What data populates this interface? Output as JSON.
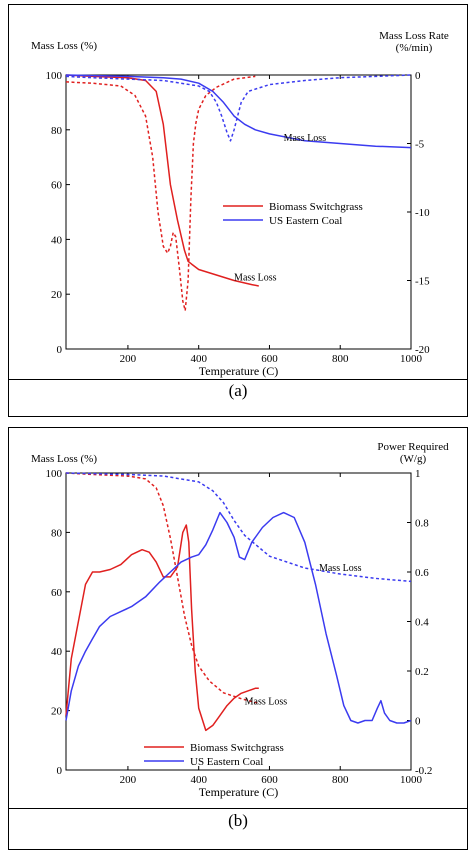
{
  "chart_data": [
    {
      "type": "line",
      "panel_label": "(a)",
      "left_axis_title": "Mass Loss (%)",
      "right_axis_title_line1": "Mass Loss Rate",
      "right_axis_title_line2": "(%/min)",
      "xlabel": "Temperature (C)",
      "xlim": [
        25,
        1000
      ],
      "ylim_left": [
        0,
        100
      ],
      "ylim_right": [
        -20,
        0
      ],
      "x_ticks": [
        200,
        400,
        600,
        800,
        1000
      ],
      "y_left_ticks": [
        0,
        20,
        40,
        60,
        80,
        100
      ],
      "y_right_ticks": [
        0,
        -5,
        -10,
        -15,
        -20
      ],
      "legend": [
        {
          "label": "Biomass Switchgrass",
          "color": "#e0201f"
        },
        {
          "label": "US Eastern Coal",
          "color": "#3b3bf0"
        }
      ],
      "legend_position": "center-right",
      "annotations": [
        {
          "text": "Mass Loss",
          "x": 700,
          "y": 76
        },
        {
          "text": "Mass Loss",
          "x": 560,
          "y": 25
        }
      ],
      "series": [
        {
          "name": "Biomass Switchgrass",
          "axis": "left",
          "style": "solid",
          "color": "#e0201f",
          "x": [
            25,
            100,
            200,
            250,
            280,
            300,
            320,
            340,
            360,
            370,
            380,
            400,
            450,
            500,
            550,
            570
          ],
          "y": [
            100,
            99.5,
            99,
            98,
            94,
            82,
            60,
            47,
            36,
            32,
            31,
            29,
            27,
            25,
            23.5,
            23
          ]
        },
        {
          "axis": "right",
          "style": "dashed",
          "color": "#e0201f",
          "x": [
            25,
            100,
            180,
            220,
            250,
            270,
            285,
            300,
            312,
            320,
            328,
            335,
            345,
            355,
            362,
            370,
            378,
            385,
            392,
            400,
            420,
            450,
            500,
            560
          ],
          "y": [
            -0.5,
            -0.6,
            -0.8,
            -1.5,
            -3,
            -6,
            -10,
            -12.5,
            -13,
            -12.5,
            -11.5,
            -11.8,
            -14,
            -16.5,
            -17.2,
            -15,
            -9,
            -5,
            -3.5,
            -2.5,
            -1.5,
            -0.9,
            -0.3,
            -0.1
          ]
        },
        {
          "name": "US Eastern Coal",
          "axis": "left",
          "style": "solid",
          "color": "#3b3bf0",
          "x": [
            25,
            200,
            300,
            350,
            400,
            440,
            470,
            500,
            530,
            560,
            600,
            700,
            800,
            900,
            1000
          ],
          "y": [
            100,
            99.5,
            99,
            98.5,
            97,
            94,
            90,
            85,
            82,
            80,
            78.5,
            76,
            75,
            74,
            73.5
          ]
        },
        {
          "axis": "right",
          "style": "dashed",
          "color": "#3b3bf0",
          "x": [
            25,
            100,
            200,
            300,
            350,
            400,
            430,
            450,
            465,
            480,
            490,
            500,
            510,
            520,
            540,
            600,
            700,
            800,
            900,
            1000
          ],
          "y": [
            -0.1,
            -0.2,
            -0.3,
            -0.4,
            -0.6,
            -0.8,
            -1.2,
            -2,
            -3,
            -4.2,
            -4.8,
            -4,
            -3,
            -2,
            -1.2,
            -0.7,
            -0.4,
            -0.2,
            -0.1,
            0
          ]
        }
      ]
    },
    {
      "type": "line",
      "panel_label": "(b)",
      "left_axis_title": "Mass Loss (%)",
      "right_axis_title_line1": "Power Required",
      "right_axis_title_line2": "(W/g)",
      "xlabel": "Temperature (C)",
      "xlim": [
        25,
        1000
      ],
      "ylim_left": [
        0,
        100
      ],
      "ylim_right": [
        -0.2,
        1
      ],
      "x_ticks": [
        200,
        400,
        600,
        800,
        1000
      ],
      "y_left_ticks": [
        0,
        20,
        40,
        60,
        80,
        100
      ],
      "y_right_ticks": [
        1,
        0.8,
        0.6,
        0.4,
        0.2,
        0,
        -0.2
      ],
      "y_right_tick_labels": [
        "1",
        "0.8",
        "0.6",
        "0.4",
        "0.2",
        "0",
        "-0.2"
      ],
      "legend": [
        {
          "label": "Biomass Switchgrass",
          "color": "#e0201f"
        },
        {
          "label": "US Eastern Coal",
          "color": "#3b3bf0"
        }
      ],
      "legend_position": "bottom-left",
      "annotations": [
        {
          "text": "Mass Loss",
          "x": 800,
          "y": 67
        },
        {
          "text": "Mass Loss",
          "x": 590,
          "y": 22
        }
      ],
      "series": [
        {
          "axis": "left",
          "style": "dashed",
          "color": "#e0201f",
          "x": [
            25,
            100,
            200,
            250,
            280,
            300,
            320,
            340,
            360,
            380,
            400,
            430,
            470,
            520,
            570
          ],
          "y": [
            100,
            99.5,
            99,
            98,
            95,
            89,
            78,
            65,
            52,
            42,
            35,
            30,
            26,
            24,
            22.5
          ]
        },
        {
          "name": "Biomass Switchgrass",
          "axis": "right",
          "style": "solid",
          "color": "#e0201f",
          "x": [
            25,
            40,
            60,
            80,
            100,
            120,
            150,
            180,
            210,
            240,
            260,
            280,
            300,
            320,
            340,
            355,
            365,
            372,
            380,
            390,
            400,
            420,
            440,
            460,
            480,
            500,
            520,
            540,
            560,
            570
          ],
          "y": [
            0.02,
            0.25,
            0.4,
            0.55,
            0.6,
            0.6,
            0.61,
            0.63,
            0.67,
            0.69,
            0.68,
            0.64,
            0.58,
            0.58,
            0.62,
            0.76,
            0.79,
            0.72,
            0.45,
            0.2,
            0.05,
            -0.04,
            -0.02,
            0.02,
            0.06,
            0.09,
            0.11,
            0.12,
            0.13,
            0.13
          ]
        },
        {
          "axis": "left",
          "style": "dashed",
          "color": "#3b3bf0",
          "x": [
            25,
            200,
            300,
            400,
            440,
            470,
            500,
            530,
            560,
            600,
            700,
            800,
            900,
            1000
          ],
          "y": [
            100,
            99.5,
            99,
            97,
            94,
            90,
            84,
            79,
            76,
            72,
            68,
            66,
            64.5,
            63.5
          ]
        },
        {
          "name": "US Eastern Coal",
          "axis": "right",
          "style": "solid",
          "color": "#3b3bf0",
          "x": [
            25,
            40,
            60,
            80,
            100,
            120,
            150,
            180,
            210,
            250,
            290,
            320,
            350,
            380,
            400,
            420,
            440,
            460,
            480,
            500,
            515,
            530,
            550,
            580,
            610,
            640,
            670,
            700,
            730,
            760,
            790,
            810,
            830,
            850,
            870,
            890,
            905,
            915,
            925,
            940,
            960,
            980,
            1000
          ],
          "y": [
            0.0,
            0.12,
            0.22,
            0.28,
            0.33,
            0.38,
            0.42,
            0.44,
            0.46,
            0.5,
            0.56,
            0.6,
            0.64,
            0.66,
            0.67,
            0.71,
            0.77,
            0.84,
            0.8,
            0.74,
            0.66,
            0.65,
            0.72,
            0.78,
            0.82,
            0.84,
            0.82,
            0.72,
            0.55,
            0.35,
            0.18,
            0.06,
            0.0,
            -0.01,
            0.0,
            0.0,
            0.05,
            0.08,
            0.03,
            0.0,
            -0.01,
            -0.01,
            0.0
          ]
        }
      ]
    }
  ]
}
